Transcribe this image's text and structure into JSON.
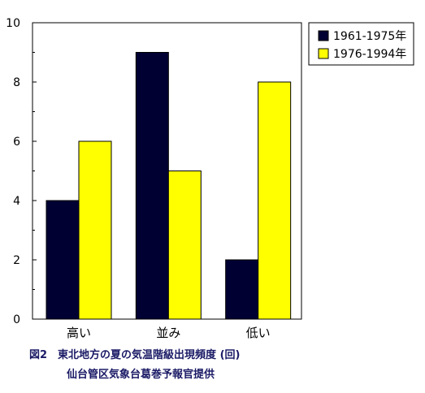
{
  "chart_data": {
    "type": "bar",
    "categories": [
      "高い",
      "並み",
      "低い"
    ],
    "series": [
      {
        "name": "1961-1975年",
        "values": [
          4,
          9,
          2
        ],
        "color": "#000033"
      },
      {
        "name": "1976-1994年",
        "values": [
          6,
          5,
          8
        ],
        "color": "#ffff00"
      }
    ],
    "ylim": [
      0,
      10
    ],
    "yticks": [
      0,
      2,
      4,
      6,
      8,
      10
    ],
    "grid": false,
    "legend_position": "top-right"
  },
  "caption": {
    "line1": "図2　東北地方の夏の気温階級出現頻度 (回)",
    "line2": "仙台管区気象台葛巻予報官提供"
  }
}
